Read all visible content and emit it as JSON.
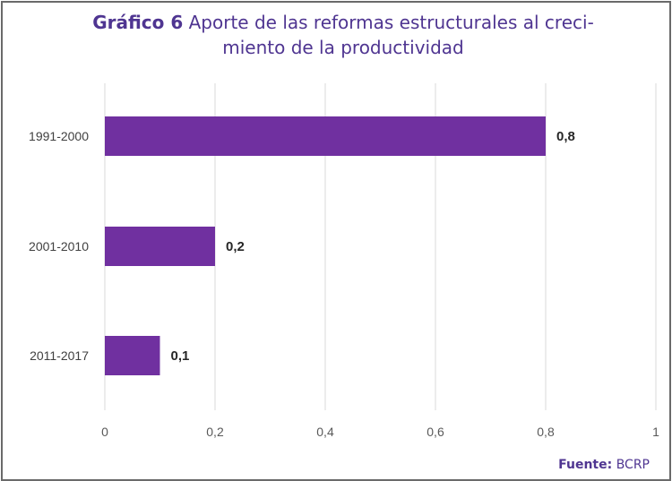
{
  "title": {
    "prefix": "Gráfico 6",
    "line1": "Aporte de las reformas estructurales al creci-",
    "line2": "miento de la productividad"
  },
  "source": {
    "label": "Fuente:",
    "value": "BCRP"
  },
  "chart_data": {
    "type": "bar",
    "orientation": "horizontal",
    "categories": [
      "1991-2000",
      "2001-2010",
      "2011-2017"
    ],
    "values": [
      0.8,
      0.2,
      0.1
    ],
    "data_labels": [
      "0,8",
      "0,2",
      "0,1"
    ],
    "xlim": [
      0,
      1
    ],
    "x_ticks": [
      0,
      0.2,
      0.4,
      0.6,
      0.8,
      1
    ],
    "x_tick_labels": [
      "0",
      "0,2",
      "0,4",
      "0,6",
      "0,8",
      "1"
    ],
    "grid": "vertical",
    "bar_color": "#7030a0",
    "title_color": "#4f3591"
  }
}
